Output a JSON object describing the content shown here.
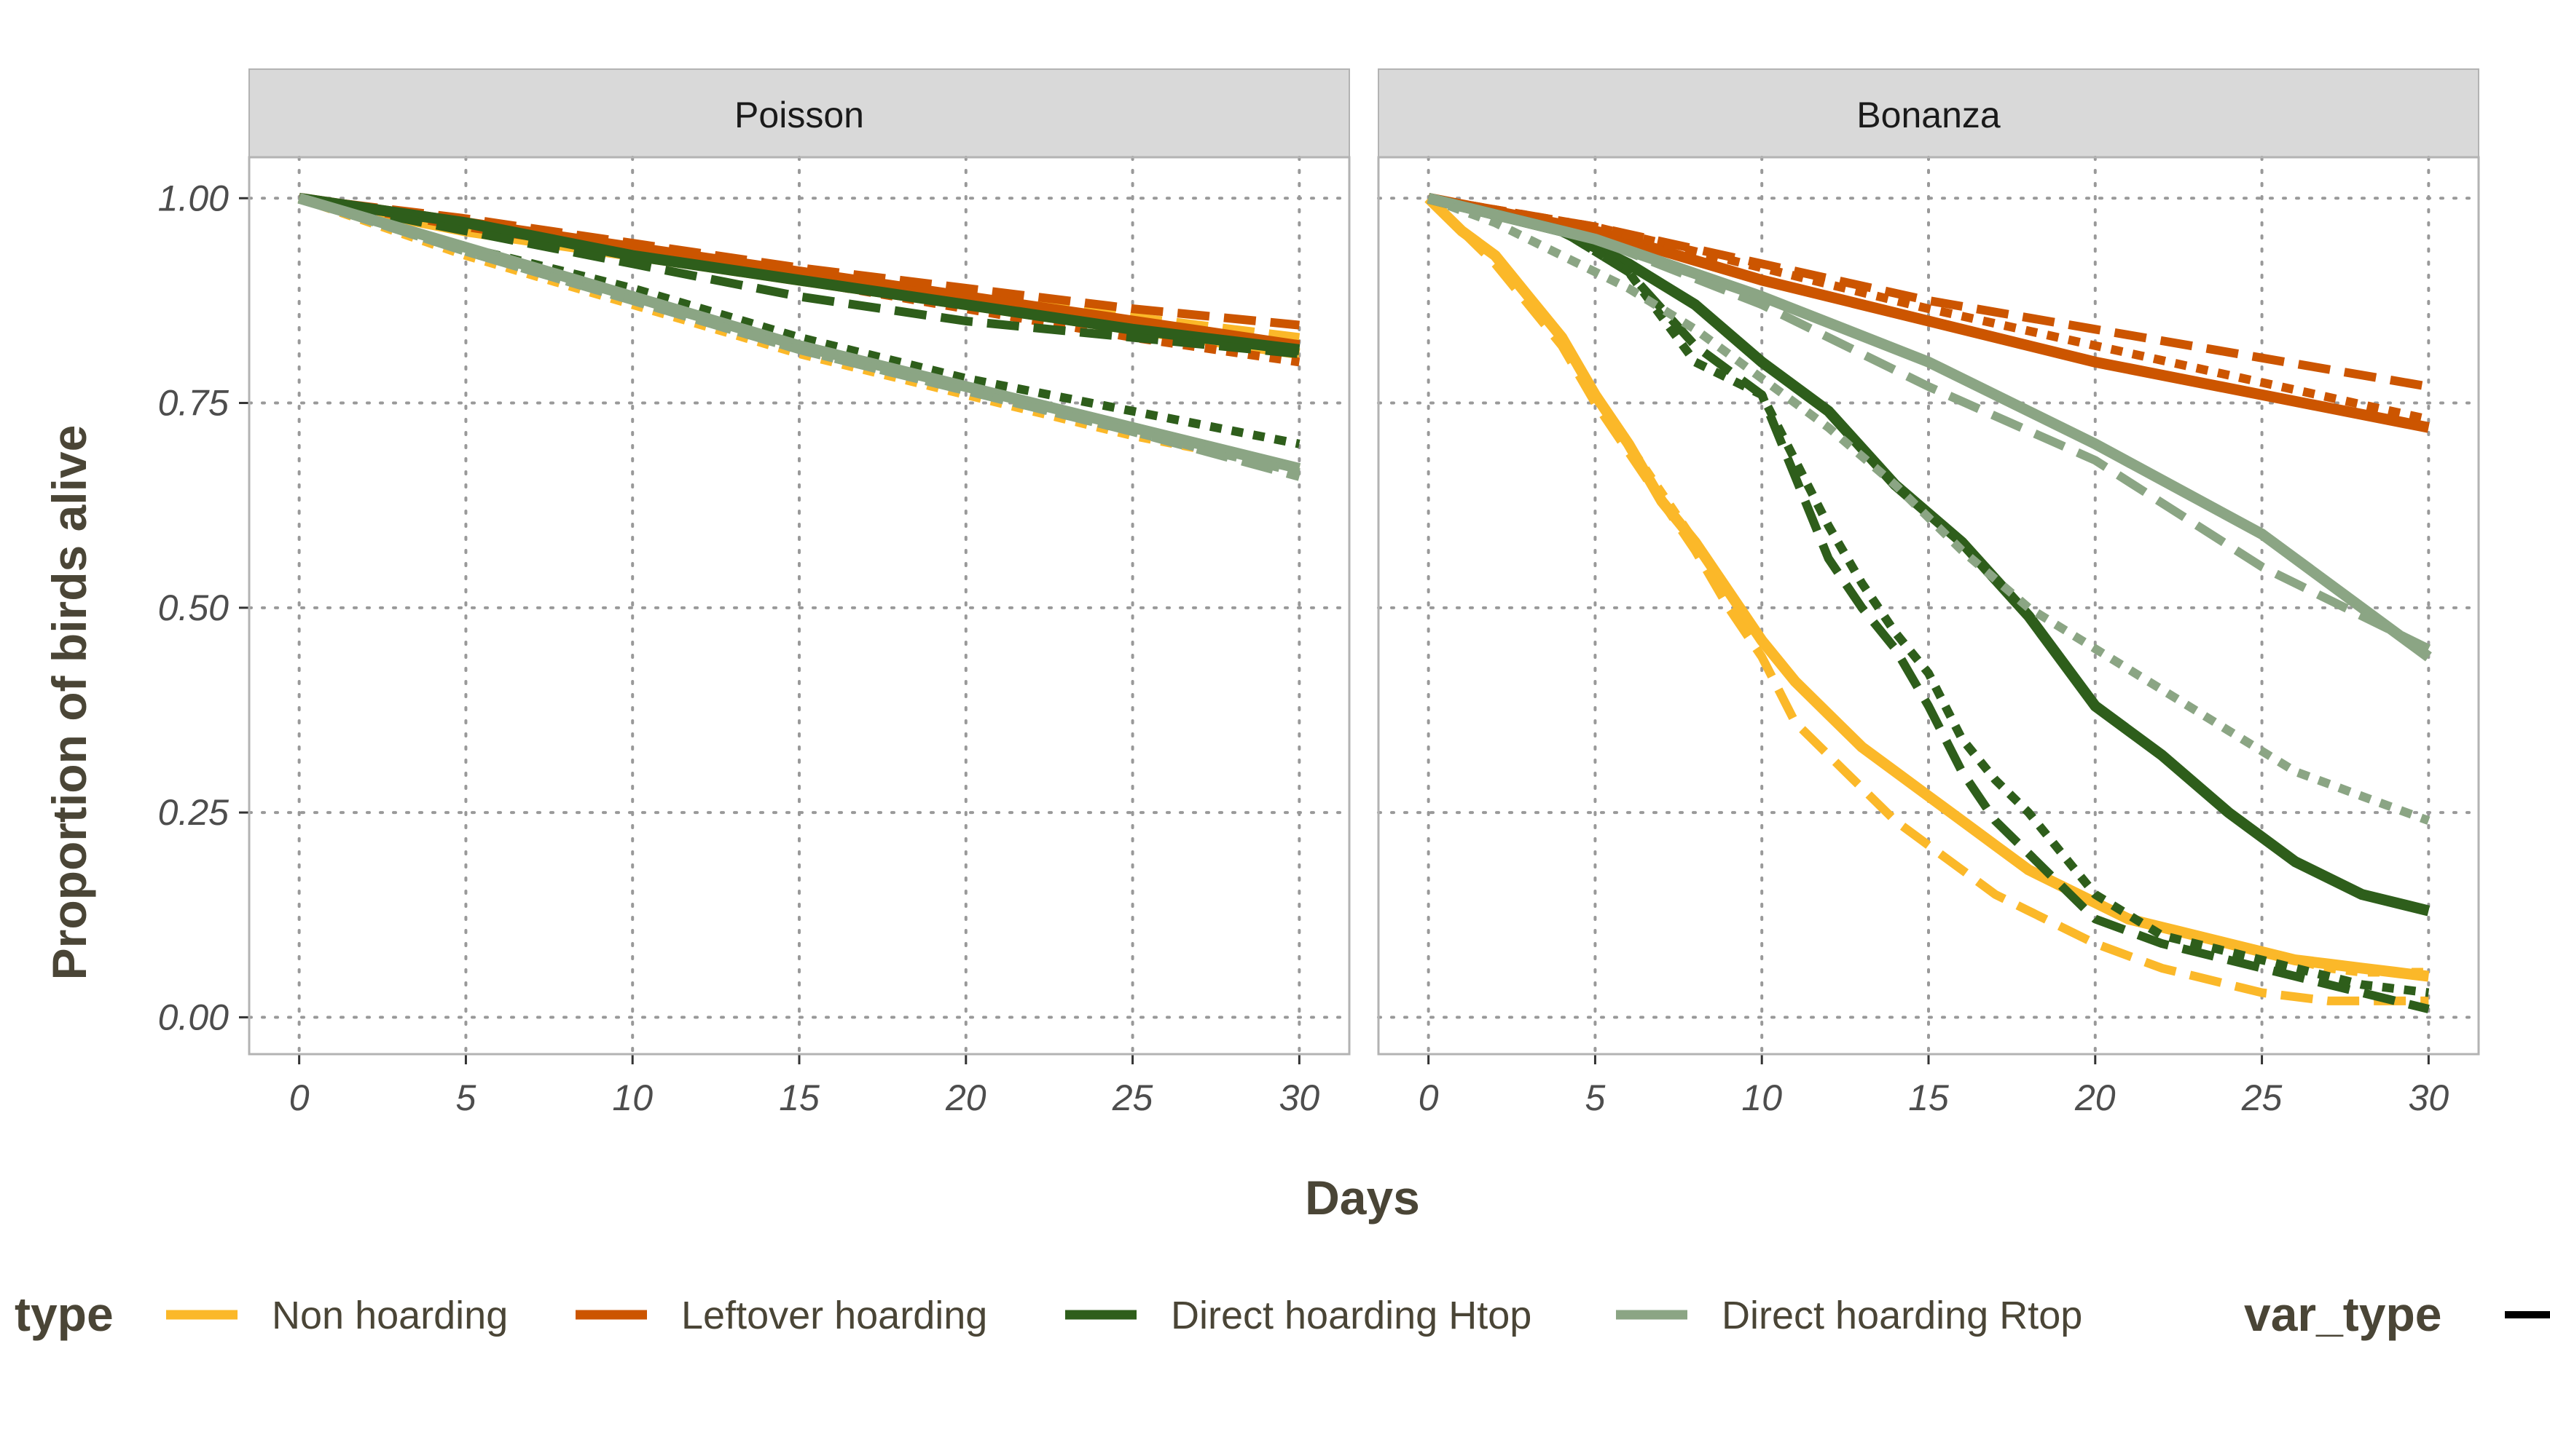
{
  "chart_data": {
    "type": "line",
    "xlabel": "Days",
    "ylabel": "Proportion of birds alive",
    "xlim": [
      -1.5,
      31.5
    ],
    "ylim": [
      -0.045,
      1.05
    ],
    "x_ticks": [
      "0",
      "5",
      "10",
      "15",
      "20",
      "25",
      "30"
    ],
    "y_ticks": [
      "0.00",
      "0.25",
      "0.50",
      "0.75",
      "1.00"
    ],
    "grid": "dotted",
    "legend": {
      "placement": "bottom",
      "type_title": "type",
      "var_type_title": "var_type",
      "entries": [
        {
          "name": "Non hoarding",
          "color": "#FBB829"
        },
        {
          "name": "Leftover hoarding",
          "color": "#CC5500"
        },
        {
          "name": "Direct hoarding Htop",
          "color": "#2E5E1B"
        },
        {
          "name": "Direct hoarding Rtop",
          "color": "#8BA584"
        }
      ]
    },
    "panels": [
      {
        "title": "Poisson",
        "series": [
          {
            "type": "Non hoarding",
            "dash": "solid",
            "color": "#FBB829",
            "x": [
              0,
              5,
              10,
              15,
              20,
              25,
              30
            ],
            "y": [
              1.0,
              0.96,
              0.93,
              0.9,
              0.87,
              0.84,
              0.81
            ]
          },
          {
            "type": "Non hoarding",
            "dash": "dashed",
            "color": "#FBB829",
            "x": [
              0,
              5,
              10,
              15,
              20,
              25,
              30
            ],
            "y": [
              1.0,
              0.965,
              0.935,
              0.905,
              0.88,
              0.855,
              0.83
            ]
          },
          {
            "type": "Non hoarding",
            "dash": "dotted",
            "color": "#FBB829",
            "x": [
              0,
              5,
              10,
              15,
              20,
              25,
              30
            ],
            "y": [
              1.0,
              0.93,
              0.87,
              0.81,
              0.76,
              0.71,
              0.67
            ]
          },
          {
            "type": "Leftover hoarding",
            "dash": "solid",
            "color": "#CC5500",
            "x": [
              0,
              5,
              10,
              15,
              20,
              25,
              30
            ],
            "y": [
              1.0,
              0.97,
              0.94,
              0.91,
              0.88,
              0.85,
              0.82
            ]
          },
          {
            "type": "Leftover hoarding",
            "dash": "dashed",
            "color": "#CC5500",
            "x": [
              0,
              5,
              10,
              15,
              20,
              25,
              30
            ],
            "y": [
              1.0,
              0.975,
              0.945,
              0.915,
              0.89,
              0.865,
              0.845
            ]
          },
          {
            "type": "Leftover hoarding",
            "dash": "dotted",
            "color": "#CC5500",
            "x": [
              0,
              5,
              10,
              15,
              20,
              25,
              30
            ],
            "y": [
              1.0,
              0.965,
              0.935,
              0.9,
              0.865,
              0.83,
              0.8
            ]
          },
          {
            "type": "Direct hoarding Htop",
            "dash": "solid",
            "color": "#2E5E1B",
            "x": [
              0,
              5,
              10,
              15,
              20,
              25,
              30
            ],
            "y": [
              1.0,
              0.97,
              0.93,
              0.9,
              0.87,
              0.84,
              0.815
            ]
          },
          {
            "type": "Direct hoarding Htop",
            "dash": "dashed",
            "color": "#2E5E1B",
            "x": [
              0,
              5,
              10,
              15,
              20,
              25,
              30
            ],
            "y": [
              1.0,
              0.96,
              0.92,
              0.88,
              0.85,
              0.83,
              0.81
            ]
          },
          {
            "type": "Direct hoarding Htop",
            "dash": "dotted",
            "color": "#2E5E1B",
            "x": [
              0,
              5,
              10,
              15,
              20,
              25,
              30
            ],
            "y": [
              1.0,
              0.94,
              0.89,
              0.83,
              0.78,
              0.74,
              0.7
            ]
          },
          {
            "type": "Direct hoarding Rtop",
            "dash": "solid",
            "color": "#8BA584",
            "x": [
              0,
              5,
              10,
              15,
              20,
              25,
              30
            ],
            "y": [
              1.0,
              0.94,
              0.88,
              0.82,
              0.77,
              0.72,
              0.67
            ]
          },
          {
            "type": "Direct hoarding Rtop",
            "dash": "dashed",
            "color": "#8BA584",
            "x": [
              0,
              5,
              10,
              15,
              20,
              25,
              30
            ],
            "y": [
              1.0,
              0.935,
              0.875,
              0.815,
              0.765,
              0.715,
              0.66
            ]
          },
          {
            "type": "Direct hoarding Rtop",
            "dash": "dotted",
            "color": "#8BA584",
            "x": [
              0,
              5,
              10,
              15,
              20,
              25,
              30
            ],
            "y": [
              1.0,
              0.935,
              0.875,
              0.815,
              0.765,
              0.715,
              0.665
            ]
          }
        ]
      },
      {
        "title": "Bonanza",
        "series": [
          {
            "type": "Non hoarding",
            "dash": "solid",
            "color": "#FBB829",
            "x": [
              0,
              1,
              2,
              3,
              4,
              5,
              6,
              7,
              8,
              9,
              10,
              11,
              12,
              13,
              14,
              15,
              16,
              17,
              18,
              19,
              20,
              21,
              22,
              23,
              24,
              25,
              26,
              27,
              28,
              29,
              30
            ],
            "y": [
              1.0,
              0.96,
              0.93,
              0.88,
              0.83,
              0.76,
              0.7,
              0.63,
              0.58,
              0.52,
              0.46,
              0.41,
              0.37,
              0.33,
              0.3,
              0.27,
              0.24,
              0.21,
              0.18,
              0.16,
              0.14,
              0.12,
              0.11,
              0.1,
              0.09,
              0.08,
              0.07,
              0.065,
              0.06,
              0.055,
              0.05
            ]
          },
          {
            "type": "Non hoarding",
            "dash": "dashed",
            "color": "#FBB829",
            "x": [
              0,
              1,
              2,
              3,
              4,
              5,
              6,
              7,
              8,
              9,
              10,
              11,
              12,
              13,
              14,
              15,
              16,
              17,
              18,
              19,
              20,
              21,
              22,
              23,
              24,
              25,
              26,
              27,
              28,
              29,
              30
            ],
            "y": [
              1.0,
              0.96,
              0.92,
              0.87,
              0.82,
              0.75,
              0.69,
              0.63,
              0.57,
              0.5,
              0.44,
              0.36,
              0.32,
              0.28,
              0.24,
              0.21,
              0.18,
              0.15,
              0.13,
              0.11,
              0.09,
              0.075,
              0.06,
              0.05,
              0.04,
              0.03,
              0.025,
              0.02,
              0.02,
              0.02,
              0.02
            ]
          },
          {
            "type": "Non hoarding",
            "dash": "dotted",
            "color": "#FBB829",
            "x": [
              0,
              1,
              2,
              3,
              4,
              5,
              6,
              7,
              8,
              9,
              10,
              11,
              12,
              13,
              14,
              15,
              16,
              17,
              18,
              19,
              20,
              21,
              22,
              23,
              24,
              25,
              26,
              27,
              28,
              29,
              30
            ],
            "y": [
              1.0,
              0.96,
              0.93,
              0.88,
              0.83,
              0.76,
              0.7,
              0.64,
              0.58,
              0.52,
              0.46,
              0.41,
              0.37,
              0.33,
              0.3,
              0.27,
              0.24,
              0.21,
              0.18,
              0.16,
              0.14,
              0.12,
              0.11,
              0.1,
              0.09,
              0.08,
              0.07,
              0.06,
              0.055,
              0.055,
              0.055
            ]
          },
          {
            "type": "Leftover hoarding",
            "dash": "solid",
            "color": "#CC5500",
            "x": [
              0,
              5,
              10,
              15,
              20,
              25,
              30
            ],
            "y": [
              1.0,
              0.96,
              0.9,
              0.85,
              0.8,
              0.76,
              0.72
            ]
          },
          {
            "type": "Leftover hoarding",
            "dash": "dashed",
            "color": "#CC5500",
            "x": [
              0,
              5,
              10,
              15,
              20,
              25,
              30
            ],
            "y": [
              1.0,
              0.965,
              0.92,
              0.875,
              0.84,
              0.805,
              0.77
            ]
          },
          {
            "type": "Leftover hoarding",
            "dash": "dotted",
            "color": "#CC5500",
            "x": [
              0,
              5,
              10,
              15,
              20,
              25,
              30
            ],
            "y": [
              1.0,
              0.965,
              0.915,
              0.865,
              0.82,
              0.775,
              0.73
            ]
          },
          {
            "type": "Direct hoarding Htop",
            "dash": "solid",
            "color": "#2E5E1B",
            "x": [
              0,
              2,
              4,
              6,
              8,
              10,
              12,
              14,
              16,
              18,
              20,
              22,
              24,
              26,
              28,
              30
            ],
            "y": [
              1.0,
              0.98,
              0.96,
              0.92,
              0.87,
              0.8,
              0.74,
              0.65,
              0.58,
              0.49,
              0.38,
              0.32,
              0.25,
              0.19,
              0.15,
              0.13
            ]
          },
          {
            "type": "Direct hoarding Htop",
            "dash": "dashed",
            "color": "#2E5E1B",
            "x": [
              0,
              2,
              4,
              6,
              8,
              10,
              11,
              12,
              13,
              14,
              15,
              16,
              17,
              18,
              19,
              20,
              22,
              24,
              26,
              28,
              30
            ],
            "y": [
              1.0,
              0.98,
              0.96,
              0.91,
              0.82,
              0.76,
              0.66,
              0.56,
              0.5,
              0.45,
              0.38,
              0.3,
              0.24,
              0.2,
              0.16,
              0.12,
              0.09,
              0.07,
              0.05,
              0.03,
              0.01
            ]
          },
          {
            "type": "Direct hoarding Htop",
            "dash": "dotted",
            "color": "#2E5E1B",
            "x": [
              0,
              2,
              4,
              6,
              8,
              10,
              11,
              12,
              13,
              14,
              15,
              16,
              17,
              18,
              19,
              20,
              22,
              24,
              26,
              28,
              30
            ],
            "y": [
              1.0,
              0.98,
              0.96,
              0.91,
              0.8,
              0.76,
              0.68,
              0.6,
              0.53,
              0.47,
              0.42,
              0.34,
              0.29,
              0.25,
              0.2,
              0.15,
              0.1,
              0.08,
              0.06,
              0.04,
              0.03
            ]
          },
          {
            "type": "Direct hoarding Rtop",
            "dash": "solid",
            "color": "#8BA584",
            "x": [
              0,
              5,
              10,
              15,
              20,
              25,
              30
            ],
            "y": [
              1.0,
              0.95,
              0.88,
              0.8,
              0.7,
              0.59,
              0.44
            ]
          },
          {
            "type": "Direct hoarding Rtop",
            "dash": "dashed",
            "color": "#8BA584",
            "x": [
              0,
              5,
              10,
              15,
              20,
              25,
              30
            ],
            "y": [
              1.0,
              0.95,
              0.87,
              0.77,
              0.68,
              0.55,
              0.45
            ]
          },
          {
            "type": "Direct hoarding Rtop",
            "dash": "dotted",
            "color": "#8BA584",
            "x": [
              0,
              2,
              4,
              6,
              8,
              10,
              12,
              14,
              16,
              18,
              20,
              22,
              24,
              26,
              28,
              30
            ],
            "y": [
              1.0,
              0.97,
              0.93,
              0.89,
              0.84,
              0.78,
              0.72,
              0.65,
              0.57,
              0.5,
              0.45,
              0.4,
              0.35,
              0.3,
              0.27,
              0.24
            ]
          }
        ]
      }
    ]
  }
}
